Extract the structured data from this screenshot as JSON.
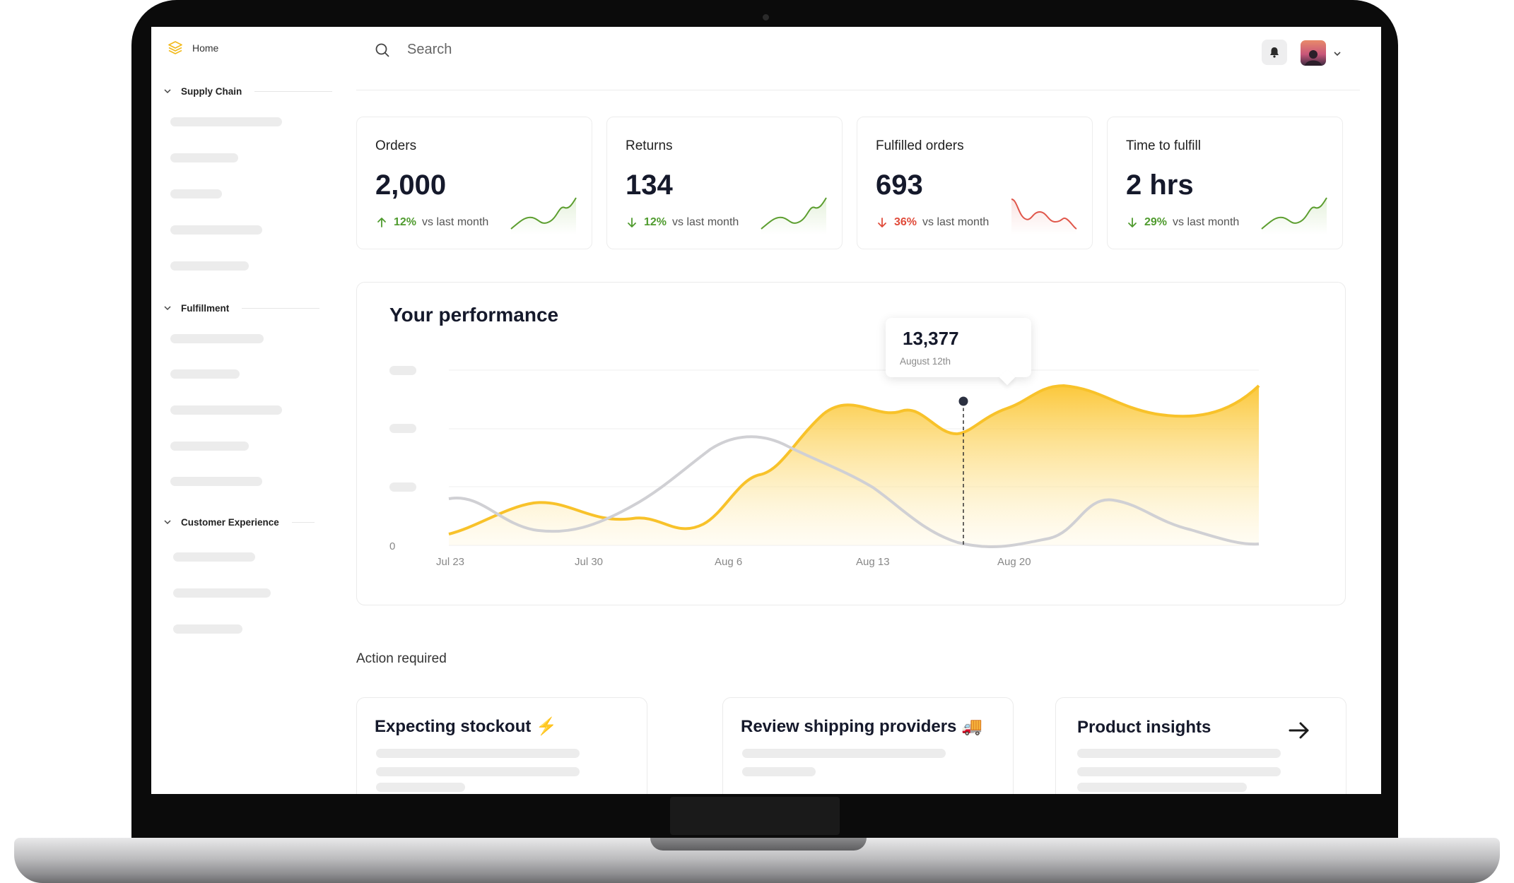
{
  "sidebar": {
    "home_label": "Home",
    "sections": [
      {
        "title": "Supply Chain"
      },
      {
        "title": "Fulfillment"
      },
      {
        "title": "Customer Experience"
      }
    ]
  },
  "search": {
    "placeholder": "Search"
  },
  "stats": [
    {
      "label": "Orders",
      "value": "2,000",
      "direction": "up",
      "change": "12%",
      "compare": "vs last month",
      "trend_color": "#5c9e2f"
    },
    {
      "label": "Returns",
      "value": "134",
      "direction": "down",
      "change": "12%",
      "compare": "vs last month",
      "trend_color": "#5c9e2f"
    },
    {
      "label": "Fulfilled orders",
      "value": "693",
      "direction": "down",
      "change": "36%",
      "compare": "vs last month",
      "trend_color": "#e0564a"
    },
    {
      "label": "Time to fulfill",
      "value": "2 hrs",
      "direction": "down",
      "change": "29%",
      "compare": "vs last month",
      "trend_color": "#5c9e2f"
    }
  ],
  "performance": {
    "title": "Your performance",
    "tooltip": {
      "value": "13,377",
      "date": "August 12th"
    },
    "chart_data": {
      "type": "area",
      "x": [
        "Jul 23",
        "Jul 30",
        "Aug 6",
        "Aug 13",
        "Aug 20"
      ],
      "y_tick_labels": [
        "0"
      ],
      "series": [
        {
          "color": "#f8c22a"
        },
        {
          "color": "#d0d0d4"
        }
      ],
      "highlighted_point": {
        "x": "Aug 12",
        "label": "13,377"
      }
    }
  },
  "actions": {
    "label": "Action required",
    "cards": [
      {
        "title": "Expecting stockout ⚡"
      },
      {
        "title": "Review shipping providers 🚚"
      },
      {
        "title": "Product insights"
      }
    ]
  },
  "colors": {
    "accent": "#f8c22a",
    "up": "#4f9b2e",
    "down": "#e04b3a",
    "text_dark": "#15192b"
  }
}
